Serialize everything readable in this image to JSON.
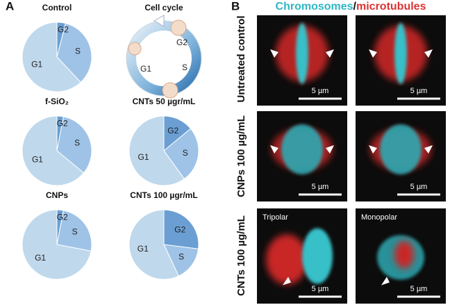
{
  "panel_labels": [
    "A",
    "B"
  ],
  "chart_data": [
    {
      "type": "pie",
      "title": "Control",
      "categories": [
        "G2",
        "S",
        "G1"
      ],
      "values": [
        4,
        34,
        62
      ],
      "colors": [
        "#6b9fd3",
        "#9fc3e7",
        "#bfd8ec"
      ]
    },
    {
      "type": "pie",
      "title": "f-SiO₂",
      "categories": [
        "G2",
        "S",
        "G1"
      ],
      "values": [
        3,
        33,
        64
      ],
      "colors": [
        "#6b9fd3",
        "#9fc3e7",
        "#bfd8ec"
      ]
    },
    {
      "type": "pie",
      "title": "CNTs 50 µgr/mL",
      "categories": [
        "G2",
        "S",
        "G1"
      ],
      "values": [
        14,
        26,
        60
      ],
      "colors": [
        "#6b9fd3",
        "#9fc3e7",
        "#bfd8ec"
      ]
    },
    {
      "type": "pie",
      "title": "CNPs",
      "categories": [
        "G2",
        "S",
        "G1"
      ],
      "values": [
        3,
        25,
        72
      ],
      "colors": [
        "#6b9fd3",
        "#9fc3e7",
        "#bfd8ec"
      ]
    },
    {
      "type": "pie",
      "title": "CNTs 100 µgr/mL",
      "categories": [
        "G2",
        "S",
        "G1"
      ],
      "values": [
        27,
        16,
        57
      ],
      "colors": [
        "#6b9fd3",
        "#9fc3e7",
        "#bfd8ec"
      ]
    }
  ],
  "cell_cycle": {
    "title": "Cell cycle",
    "labels": [
      "G2",
      "S",
      "G1"
    ]
  },
  "panel_b": {
    "header": [
      "Chromosomes",
      "/",
      "microtubules"
    ],
    "rows": [
      "Untreated control",
      "CNPs 100 µg/mL",
      "CNTs 100 µg/mL"
    ],
    "image_labels": [
      "Tripolar",
      "Monopolar"
    ],
    "scale_labels": [
      "5 µm",
      "5 µm",
      "5 µm",
      "5 µm",
      "5 µm",
      "5 µm"
    ]
  }
}
